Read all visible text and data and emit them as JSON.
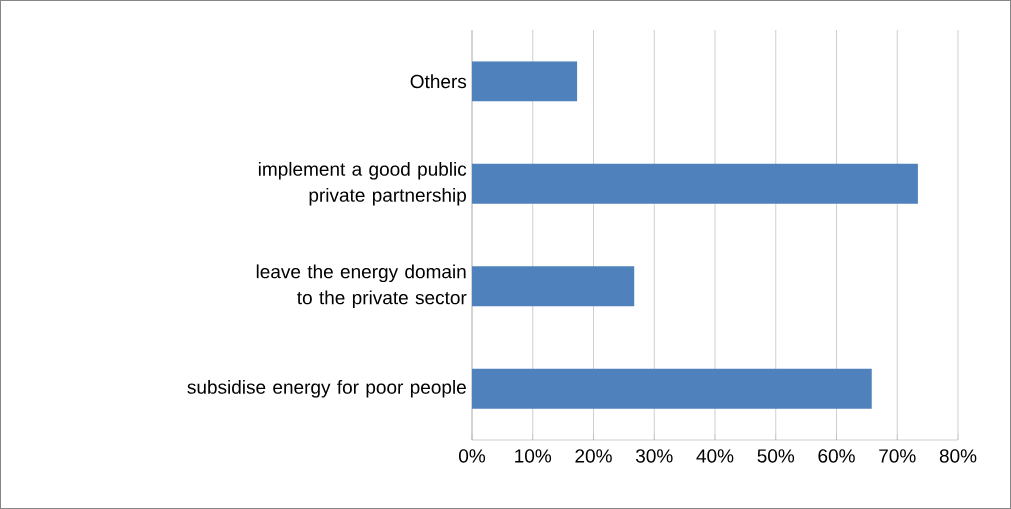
{
  "chart_data": {
    "type": "bar",
    "orientation": "horizontal",
    "categories": [
      "Others",
      "implement a good public private partnership",
      "leave the energy domain to the private sector",
      "subsidise energy for poor people"
    ],
    "values": [
      0.173,
      0.734,
      0.267,
      0.658
    ],
    "color": "#4f81bd",
    "xlim": [
      0,
      0.8
    ],
    "xticks": [
      {
        "value": 0,
        "label": "0%"
      },
      {
        "value": 0.1,
        "label": "10%"
      },
      {
        "value": 0.2,
        "label": "20%"
      },
      {
        "value": 0.3,
        "label": "30%"
      },
      {
        "value": 0.4,
        "label": "40%"
      },
      {
        "value": 0.5,
        "label": "50%"
      },
      {
        "value": 0.6,
        "label": "60%"
      },
      {
        "value": 0.7,
        "label": "70%"
      },
      {
        "value": 0.8,
        "label": "80%"
      }
    ],
    "grid": "x"
  }
}
